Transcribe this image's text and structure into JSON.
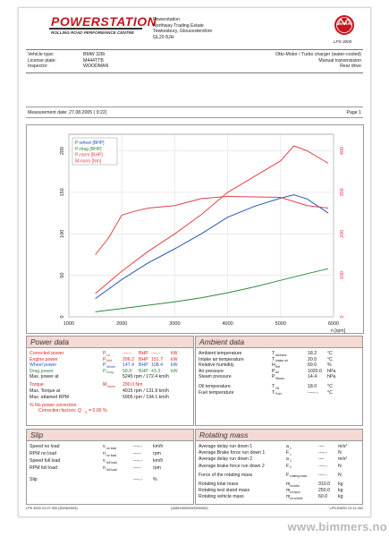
{
  "header": {
    "brand": "POWERSTATION",
    "tagline": "ROLLING ROAD PERFORMANCE CENTRE",
    "address": [
      "Powerstation",
      "Northway Trading Estate",
      "Tewkesbury, Gloucestershire",
      "GL20 8JH"
    ],
    "logo_text": "MAHA",
    "logo_caption": "LPS 3000"
  },
  "vehicle": {
    "labels": [
      "Vehicle type:",
      "License plate:",
      "Inspector:"
    ],
    "values": [
      "BMW 328i",
      "M444TTB",
      "WOODMAN"
    ],
    "engine": "Otto-Motor / Turbo charger (water-cooled)",
    "transmission": "Manual transmission",
    "drive": "Rear drive"
  },
  "measurement": {
    "date_label": "Measurement date: 27.08.2005 ( 9:22)",
    "page": "Page 1"
  },
  "chart_data": {
    "type": "line",
    "x_ticks": [
      "1000",
      "2000",
      "3000",
      "4000",
      "5000",
      "6000"
    ],
    "x_unit": "n [rpm]",
    "y_left_ticks": [
      "0",
      "50",
      "100",
      "150",
      "200"
    ],
    "y_right_ticks": [
      "0",
      "100",
      "200",
      "300",
      "400"
    ],
    "xlim": [
      1000,
      6000
    ],
    "ylim_left": [
      0,
      220
    ],
    "ylim_right": [
      0,
      440
    ],
    "legend": [
      "P-wheel [BHP]",
      "P-drag [BHP]",
      "P-norm [BHP]",
      "M-norm [Nm]"
    ],
    "colors": {
      "p_wheel": "#2458b8",
      "p_drag": "#2c8a3a",
      "p_norm": "#e0424a",
      "m_norm": "#e0424a"
    },
    "series": [
      {
        "name": "P-wheel [BHP]",
        "axis": "left",
        "x": [
          1500,
          2000,
          2500,
          3000,
          3500,
          4000,
          4500,
          5000,
          5250,
          5500,
          5900
        ],
        "y": [
          22,
          45,
          65,
          82,
          100,
          120,
          133,
          143,
          147,
          142,
          125
        ]
      },
      {
        "name": "P-drag [BHP]",
        "axis": "left",
        "x": [
          1500,
          2000,
          2500,
          3000,
          3500,
          4000,
          4500,
          5000,
          5500,
          5900
        ],
        "y": [
          6,
          10,
          14,
          18,
          23,
          29,
          36,
          44,
          52,
          58
        ]
      },
      {
        "name": "P-norm [BHP]",
        "axis": "left",
        "x": [
          1500,
          2000,
          2500,
          3000,
          3500,
          4000,
          4500,
          5000,
          5250,
          5500,
          5900
        ],
        "y": [
          28,
          55,
          79,
          100,
          123,
          150,
          169,
          188,
          206,
          200,
          185
        ]
      },
      {
        "name": "M-norm [Nm]",
        "axis": "right",
        "x": [
          1500,
          1750,
          2000,
          2250,
          2500,
          3000,
          3500,
          4000,
          4500,
          5000,
          5500,
          5900
        ],
        "y": [
          150,
          190,
          245,
          255,
          262,
          268,
          285,
          290,
          289,
          288,
          268,
          262
        ]
      }
    ]
  },
  "power_data": {
    "title": "Power data",
    "rows": [
      {
        "label": "Corrected power",
        "sym": "P",
        "sub": "Lo",
        "v1": "----.- ",
        "u1": "BHP",
        "v2": "----.-",
        "u2": "kW",
        "color": "#d22"
      },
      {
        "label": "Engine power",
        "sym": "P",
        "sub": "Mot",
        "v1": "206.2",
        "u1": "BHP",
        "v2": "151.7",
        "u2": "kW",
        "color": "#d22"
      },
      {
        "label": "Wheel power",
        "sym": "P",
        "sub": "Wheel",
        "v1": "147.4",
        "u1": "BHP",
        "v2": "108.4",
        "u2": "kW",
        "color": "#2458b8"
      },
      {
        "label": "Drag power",
        "sym": "P",
        "sub": "Drag",
        "v1": "58.8",
        "u1": "BHP",
        "v2": "43.3",
        "u2": "kW",
        "color": "#2c8a3a"
      }
    ],
    "max_power": "Max. power at",
    "max_power_val": "5245  rpm  /  172.4  km/h",
    "torque_label": "Torque",
    "torque_sym": "M",
    "torque_sub": "Norm",
    "torque_val": "290.0  Nm",
    "max_torque": "Max. Torque at",
    "max_torque_val": "4015  rpm  /  131.9  km/h",
    "max_rpm": "Max. attained RPM",
    "max_rpm_val": "5905  rpm  /  194.1  km/h",
    "note1": "% No power correction",
    "note2": "Correction factors: Q",
    "note2_sub": "S",
    "note2_val": " =    0.00 %"
  },
  "ambient_data": {
    "title": "Ambient data",
    "rows": [
      {
        "label": "Ambient temperature",
        "sym": "T",
        "sub": "Ambient",
        "val": "18.2",
        "unit": "°C"
      },
      {
        "label": "Intake air temperature",
        "sym": "T",
        "sub": "Intake air",
        "val": "20.0",
        "unit": "°C"
      },
      {
        "label": "Relative humidity",
        "sym": "H",
        "sub": "Rel",
        "val": "69.0",
        "unit": "%"
      },
      {
        "label": "Air pressure",
        "sym": "P",
        "sub": "Air",
        "val": "1020.0",
        "unit": "hPa"
      },
      {
        "label": "Steam pressure",
        "sym": "P",
        "sub": "Steam",
        "val": "14.4",
        "unit": "hPa"
      },
      {
        "label": "Oil temperature",
        "sym": "T",
        "sub": "Oil",
        "val": "18.0",
        "unit": "°C"
      },
      {
        "label": "Fuel temperature",
        "sym": "T",
        "sub": "Fuel",
        "val": "-----.-",
        "unit": "°C"
      }
    ]
  },
  "slip": {
    "title": "Slip",
    "rows": [
      {
        "label": "Speed no load",
        "sym": "v",
        "sub": "no load",
        "val": "----.-",
        "unit": "km/h"
      },
      {
        "label": "RPM no load",
        "sym": "n",
        "sub": "no load",
        "val": "-----",
        "unit": "rpm"
      },
      {
        "label": "Speed full load",
        "sym": "v",
        "sub": "full load",
        "val": "----.-",
        "unit": "km/h"
      },
      {
        "label": "RPM full load",
        "sym": "n",
        "sub": "full load",
        "val": "-----",
        "unit": "rpm"
      },
      {
        "label": "Slip",
        "sym": "",
        "sub": "",
        "val": "----.-",
        "unit": "%"
      }
    ]
  },
  "rotating_mass": {
    "title": "Rotating mass",
    "rows": [
      {
        "label": "Average delay run down 1",
        "sym": "a",
        "sub": "1",
        "val": "----",
        "unit": "m/s²"
      },
      {
        "label": "Average Brake force run down 1",
        "sym": "F",
        "sub": "1",
        "val": "----.-",
        "unit": "N"
      },
      {
        "label": "Average delay run down 2",
        "sym": "a",
        "sub": "2",
        "val": "----",
        "unit": "m/s²"
      },
      {
        "label": "Average brake force run down 2",
        "sym": "F",
        "sub": "2",
        "val": "----.-",
        "unit": "N"
      },
      {
        "label": "Force of the rotating mass",
        "sym": "F",
        "sub": "rotating mass",
        "val": "----.-",
        "unit": "N"
      },
      {
        "label": "Rotating total mass",
        "sym": "m",
        "sub": "rot.total",
        "val": "310.0",
        "unit": "kg"
      },
      {
        "label": "Rotating test stand mass",
        "sym": "m",
        "sub": "rot.dyno",
        "val": "250.0",
        "unit": "kg"
      },
      {
        "label": "Rotating vehicle mass",
        "sym": "m",
        "sub": "rot.vehicle",
        "val": "60.0",
        "kg2": "",
        "unit": "kg"
      }
    ]
  },
  "footer": {
    "left": "LPS 3000 V1.07.000 (30/08/2003)",
    "mid": "(15810/000/000000/000)",
    "right": "LPS-EURO V1.11.002",
    "url": "www.bimmers.no"
  }
}
